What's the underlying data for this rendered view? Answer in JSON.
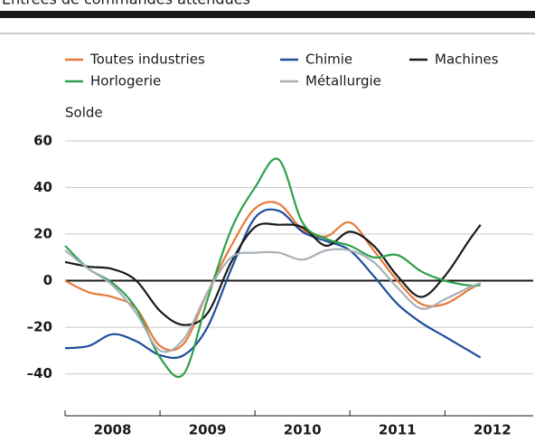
{
  "chart_data": {
    "type": "line",
    "title": "Entrées de commandes attendues",
    "y_label": "Solde",
    "x": [
      2008,
      2008.25,
      2008.5,
      2008.75,
      2009,
      2009.25,
      2009.5,
      2009.75,
      2010,
      2010.25,
      2010.5,
      2010.75,
      2011,
      2011.25,
      2011.5,
      2011.75,
      2012,
      2012.25,
      2012.375
    ],
    "x_periods": [
      "2008",
      "2009",
      "2010",
      "2011",
      "2012"
    ],
    "xlim": [
      2008,
      2012.93
    ],
    "ylim": [
      -58,
      65
    ],
    "yticks": [
      60,
      40,
      20,
      0,
      {
        "value": -20,
        "label": "–20"
      },
      {
        "value": -40,
        "label": "–40"
      }
    ],
    "grid": true,
    "series": [
      {
        "name": "Toutes industries",
        "color": "#e8793a",
        "values": [
          0,
          -5,
          -7,
          -12,
          -28,
          -27,
          -5,
          15,
          31,
          33,
          22,
          19,
          25,
          13,
          0,
          -10,
          -10,
          -4,
          -1
        ]
      },
      {
        "name": "Chimie",
        "color": "#1f4e9c",
        "values": [
          -29,
          -28,
          -23,
          -26,
          -32,
          -32,
          -20,
          5,
          27,
          30,
          21,
          17,
          13,
          2,
          -10,
          -18,
          -24,
          -30,
          -33
        ]
      },
      {
        "name": "Machines",
        "color": "#1a1a1a",
        "values": [
          8,
          6,
          5,
          0,
          -13,
          -19,
          -14,
          8,
          23,
          24,
          23,
          15,
          21,
          15,
          2,
          -7,
          2,
          17,
          24
        ]
      },
      {
        "name": "Horlogerie",
        "color": "#2ea04a",
        "values": [
          15,
          5,
          -1,
          -12,
          -33,
          -40,
          -8,
          22,
          40,
          52,
          25,
          18,
          15,
          10,
          11,
          4,
          0,
          -2,
          -2
        ]
      },
      {
        "name": "Métallurgie",
        "color": "#a8b0b8",
        "values": [
          13,
          5,
          -2,
          -14,
          -30,
          -25,
          -5,
          10,
          12,
          12,
          9,
          13,
          13,
          8,
          -3,
          -12,
          -8,
          -3,
          -1
        ]
      }
    ]
  }
}
